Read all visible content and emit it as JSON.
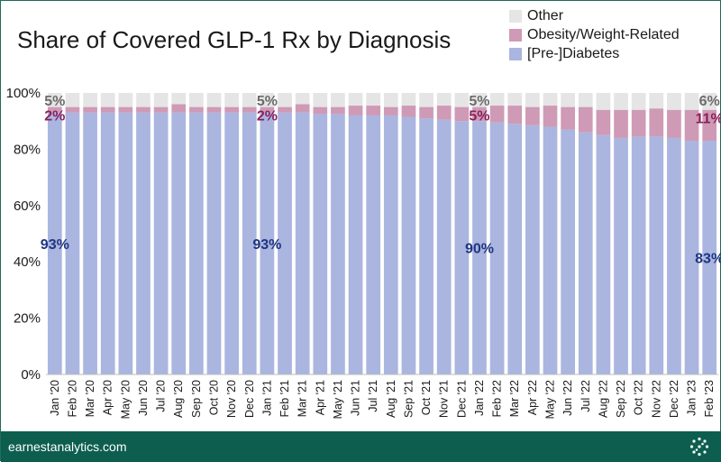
{
  "chart_data": {
    "type": "bar",
    "stacked": true,
    "title": "Share of Covered GLP-1 Rx by Diagnosis",
    "categories": [
      "Jan '20",
      "Feb '20",
      "Mar '20",
      "Apr '20",
      "May '20",
      "Jun '20",
      "Jul '20",
      "Aug '20",
      "Sep '20",
      "Oct '20",
      "Nov '20",
      "Dec '20",
      "Jan '21",
      "Feb '21",
      "Mar '21",
      "Apr '21",
      "May '21",
      "Jun '21",
      "Jul '21",
      "Aug '21",
      "Sep '21",
      "Oct '21",
      "Nov '21",
      "Dec '21",
      "Jan '22",
      "Feb '22",
      "Mar '22",
      "Apr '22",
      "May '22",
      "Jun '22",
      "Jul '22",
      "Aug '22",
      "Sep '22",
      "Oct '22",
      "Nov '22",
      "Dec '22",
      "Jan '23",
      "Feb '23"
    ],
    "series": [
      {
        "name": "[Pre-]Diabetes",
        "color": "#aab5e0",
        "values": [
          93,
          93,
          93,
          93,
          93,
          93,
          93,
          93,
          93,
          93,
          93,
          93,
          93,
          93,
          93,
          92.5,
          92.5,
          92,
          92,
          92,
          91.5,
          91,
          90.5,
          90,
          90,
          89.5,
          89,
          88.5,
          88,
          87,
          86,
          85,
          84,
          84.5,
          84.5,
          84,
          83,
          83
        ]
      },
      {
        "name": "Obesity/Weight-Related",
        "color": "#cf9ab6",
        "values": [
          2,
          2,
          2,
          2,
          2,
          2,
          2,
          3,
          2,
          2,
          2,
          2,
          2,
          2,
          3,
          2.5,
          2.5,
          3.5,
          3.5,
          3,
          4,
          4,
          5,
          5,
          5,
          6,
          6.5,
          6.5,
          7.5,
          8,
          9,
          9,
          10,
          9.5,
          10,
          10,
          11,
          11
        ]
      },
      {
        "name": "Other",
        "color": "#e5e5e5",
        "values": [
          5,
          5,
          5,
          5,
          5,
          5,
          5,
          4,
          5,
          5,
          5,
          5,
          5,
          5,
          4,
          5,
          5,
          4.5,
          4.5,
          5,
          4.5,
          5,
          4.5,
          5,
          5,
          4.5,
          4.5,
          5,
          4.5,
          5,
          5,
          6,
          6,
          6,
          5.5,
          6,
          6,
          6
        ]
      }
    ],
    "ylim": [
      0,
      100
    ],
    "yticks": [
      "0%",
      "20%",
      "40%",
      "60%",
      "80%",
      "100%"
    ],
    "legend": "top-right",
    "grid": false,
    "annotations": [
      {
        "index": 0,
        "diabetes": "93%",
        "obesity": "2%",
        "other": "5%"
      },
      {
        "index": 12,
        "diabetes": "93%",
        "obesity": "2%",
        "other": "5%"
      },
      {
        "index": 24,
        "diabetes": "90%",
        "obesity": "5%",
        "other": "5%"
      },
      {
        "index": 37,
        "diabetes": "83%",
        "obesity": "11%",
        "other": "6%"
      }
    ],
    "label_colors": {
      "diabetes": "#1f3580",
      "obesity": "#8a1f5c",
      "other": "#6b6b6b"
    }
  },
  "legend": {
    "items": [
      {
        "label": "Other",
        "color": "#e5e5e5"
      },
      {
        "label": "Obesity/Weight-Related",
        "color": "#cf9ab6"
      },
      {
        "label": "[Pre-]Diabetes",
        "color": "#aab5e0"
      }
    ]
  },
  "footer": {
    "site": "earnestanalytics.com",
    "logo_icon": "dotted-circle-logo-icon",
    "background": "#0d5e4f"
  }
}
